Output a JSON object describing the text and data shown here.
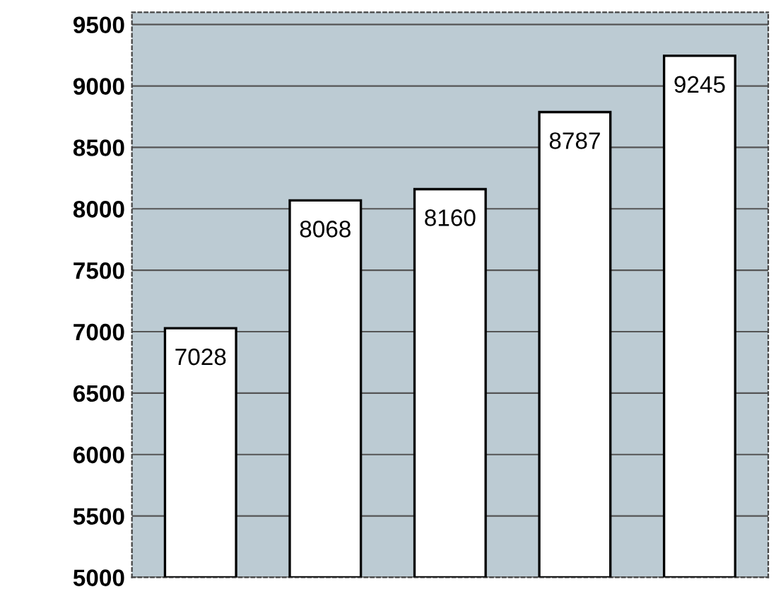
{
  "chart_data": {
    "type": "bar",
    "categories": [
      null,
      null,
      null,
      null,
      null
    ],
    "values": [
      7028,
      8068,
      8160,
      8787,
      9245
    ],
    "color": "#ffffff",
    "ylim": [
      5000,
      9600
    ],
    "yticks": [
      5000,
      5500,
      6000,
      6500,
      7000,
      7500,
      8000,
      8500,
      9000,
      9500
    ],
    "grid": "y",
    "data_labels": true
  }
}
